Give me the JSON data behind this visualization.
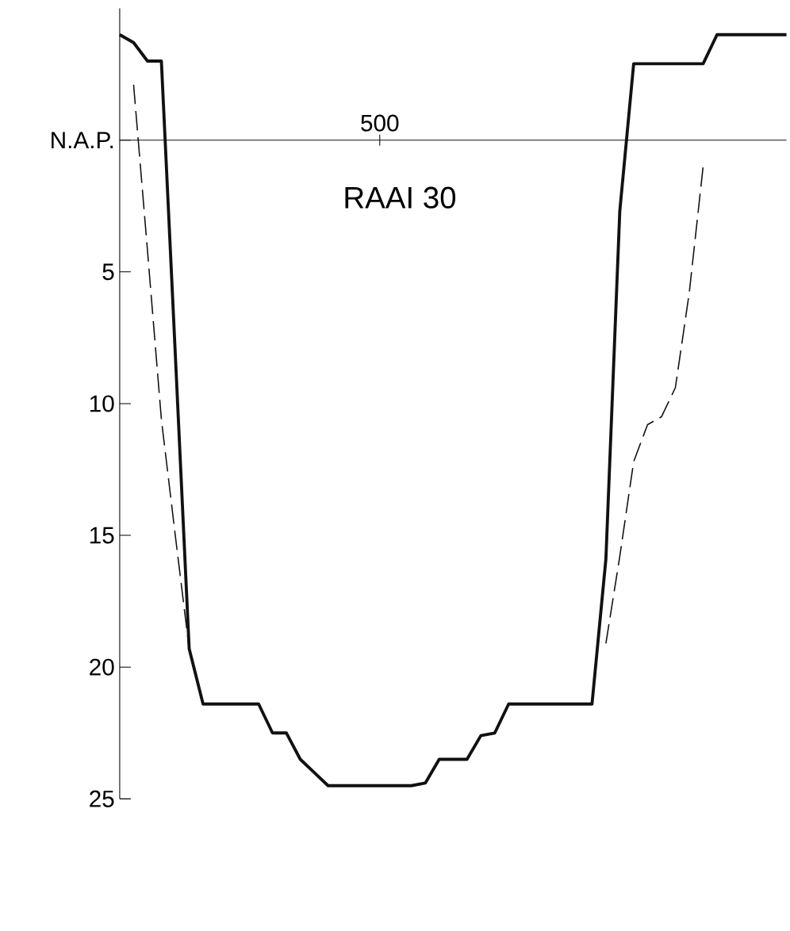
{
  "chart_data": {
    "type": "line",
    "title": "RAAI 30",
    "annotations": [
      "500"
    ],
    "categories": [
      null,
      null,
      null,
      null,
      null,
      null,
      null,
      null,
      null,
      null,
      null,
      null,
      null,
      null,
      null,
      null,
      null,
      null,
      null,
      null,
      null,
      null,
      null,
      null,
      null,
      null,
      null,
      null,
      null,
      null,
      null,
      null,
      null,
      null,
      null,
      null,
      null,
      null,
      null,
      null,
      null,
      null,
      null,
      null,
      null,
      null,
      null,
      null,
      null
    ],
    "ylim": [
      25,
      -5
    ],
    "yticks": [
      {
        "value": 0,
        "label": "N.A.P."
      },
      {
        "value": 5,
        "label": "5"
      },
      {
        "value": 10,
        "label": "10"
      },
      {
        "value": 15,
        "label": "15"
      },
      {
        "value": 20,
        "label": "20"
      },
      {
        "value": 25,
        "label": "25"
      }
    ],
    "series": [
      {
        "color": "#111111",
        "line_style": "solid",
        "values": [
          -4.0,
          -3.7,
          -3.0,
          -3.0,
          8.1,
          19.3,
          21.4,
          21.4,
          21.4,
          21.4,
          21.4,
          22.5,
          22.5,
          23.5,
          24.0,
          24.5,
          24.5,
          24.5,
          24.5,
          24.5,
          24.5,
          24.5,
          24.4,
          23.5,
          23.5,
          23.5,
          22.6,
          22.5,
          21.4,
          21.4,
          21.4,
          21.4,
          21.4,
          21.4,
          21.4,
          15.9,
          2.7,
          -2.9,
          -2.9,
          -2.9,
          -2.9,
          -2.9,
          -2.9,
          -4.0,
          -4.0,
          -4.0,
          -4.0,
          -4.0,
          -4.0
        ]
      },
      {
        "color": "#111111",
        "line_style": "dashed",
        "values": [
          null,
          -2.1,
          4.2,
          10.6,
          15.0,
          19.3,
          null,
          null,
          null,
          null,
          null,
          null,
          null,
          null,
          null,
          null,
          null,
          null,
          null,
          null,
          null,
          null,
          null,
          null,
          null,
          null,
          null,
          null,
          null,
          null,
          null,
          null,
          null,
          null,
          null,
          19.1,
          15.8,
          12.2,
          10.8,
          10.5,
          9.4,
          5.8,
          1.0,
          null,
          null,
          null,
          null,
          null,
          null
        ]
      }
    ],
    "ref_lines": [
      {
        "axis": "y",
        "value": 0,
        "color": "#111111",
        "line_style": "solid"
      }
    ],
    "marker": "none"
  }
}
